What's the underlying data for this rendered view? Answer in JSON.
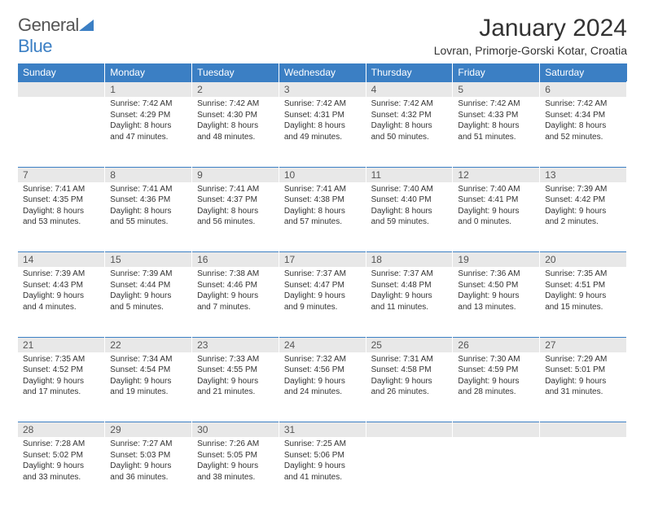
{
  "brand": {
    "name_part1": "General",
    "name_part2": "Blue"
  },
  "title": "January 2024",
  "location": "Lovran, Primorje-Gorski Kotar, Croatia",
  "colors": {
    "accent": "#3b7fc4",
    "daynum_bg": "#e8e8e8",
    "text": "#333333",
    "bg": "#ffffff"
  },
  "day_headers": [
    "Sunday",
    "Monday",
    "Tuesday",
    "Wednesday",
    "Thursday",
    "Friday",
    "Saturday"
  ],
  "weeks": [
    {
      "nums": [
        "",
        "1",
        "2",
        "3",
        "4",
        "5",
        "6"
      ],
      "cells": [
        {
          "empty": true
        },
        {
          "sunrise": "7:42 AM",
          "sunset": "4:29 PM",
          "daylight": "8 hours and 47 minutes."
        },
        {
          "sunrise": "7:42 AM",
          "sunset": "4:30 PM",
          "daylight": "8 hours and 48 minutes."
        },
        {
          "sunrise": "7:42 AM",
          "sunset": "4:31 PM",
          "daylight": "8 hours and 49 minutes."
        },
        {
          "sunrise": "7:42 AM",
          "sunset": "4:32 PM",
          "daylight": "8 hours and 50 minutes."
        },
        {
          "sunrise": "7:42 AM",
          "sunset": "4:33 PM",
          "daylight": "8 hours and 51 minutes."
        },
        {
          "sunrise": "7:42 AM",
          "sunset": "4:34 PM",
          "daylight": "8 hours and 52 minutes."
        }
      ]
    },
    {
      "nums": [
        "7",
        "8",
        "9",
        "10",
        "11",
        "12",
        "13"
      ],
      "cells": [
        {
          "sunrise": "7:41 AM",
          "sunset": "4:35 PM",
          "daylight": "8 hours and 53 minutes."
        },
        {
          "sunrise": "7:41 AM",
          "sunset": "4:36 PM",
          "daylight": "8 hours and 55 minutes."
        },
        {
          "sunrise": "7:41 AM",
          "sunset": "4:37 PM",
          "daylight": "8 hours and 56 minutes."
        },
        {
          "sunrise": "7:41 AM",
          "sunset": "4:38 PM",
          "daylight": "8 hours and 57 minutes."
        },
        {
          "sunrise": "7:40 AM",
          "sunset": "4:40 PM",
          "daylight": "8 hours and 59 minutes."
        },
        {
          "sunrise": "7:40 AM",
          "sunset": "4:41 PM",
          "daylight": "9 hours and 0 minutes."
        },
        {
          "sunrise": "7:39 AM",
          "sunset": "4:42 PM",
          "daylight": "9 hours and 2 minutes."
        }
      ]
    },
    {
      "nums": [
        "14",
        "15",
        "16",
        "17",
        "18",
        "19",
        "20"
      ],
      "cells": [
        {
          "sunrise": "7:39 AM",
          "sunset": "4:43 PM",
          "daylight": "9 hours and 4 minutes."
        },
        {
          "sunrise": "7:39 AM",
          "sunset": "4:44 PM",
          "daylight": "9 hours and 5 minutes."
        },
        {
          "sunrise": "7:38 AM",
          "sunset": "4:46 PM",
          "daylight": "9 hours and 7 minutes."
        },
        {
          "sunrise": "7:37 AM",
          "sunset": "4:47 PM",
          "daylight": "9 hours and 9 minutes."
        },
        {
          "sunrise": "7:37 AM",
          "sunset": "4:48 PM",
          "daylight": "9 hours and 11 minutes."
        },
        {
          "sunrise": "7:36 AM",
          "sunset": "4:50 PM",
          "daylight": "9 hours and 13 minutes."
        },
        {
          "sunrise": "7:35 AM",
          "sunset": "4:51 PM",
          "daylight": "9 hours and 15 minutes."
        }
      ]
    },
    {
      "nums": [
        "21",
        "22",
        "23",
        "24",
        "25",
        "26",
        "27"
      ],
      "cells": [
        {
          "sunrise": "7:35 AM",
          "sunset": "4:52 PM",
          "daylight": "9 hours and 17 minutes."
        },
        {
          "sunrise": "7:34 AM",
          "sunset": "4:54 PM",
          "daylight": "9 hours and 19 minutes."
        },
        {
          "sunrise": "7:33 AM",
          "sunset": "4:55 PM",
          "daylight": "9 hours and 21 minutes."
        },
        {
          "sunrise": "7:32 AM",
          "sunset": "4:56 PM",
          "daylight": "9 hours and 24 minutes."
        },
        {
          "sunrise": "7:31 AM",
          "sunset": "4:58 PM",
          "daylight": "9 hours and 26 minutes."
        },
        {
          "sunrise": "7:30 AM",
          "sunset": "4:59 PM",
          "daylight": "9 hours and 28 minutes."
        },
        {
          "sunrise": "7:29 AM",
          "sunset": "5:01 PM",
          "daylight": "9 hours and 31 minutes."
        }
      ]
    },
    {
      "nums": [
        "28",
        "29",
        "30",
        "31",
        "",
        "",
        ""
      ],
      "cells": [
        {
          "sunrise": "7:28 AM",
          "sunset": "5:02 PM",
          "daylight": "9 hours and 33 minutes."
        },
        {
          "sunrise": "7:27 AM",
          "sunset": "5:03 PM",
          "daylight": "9 hours and 36 minutes."
        },
        {
          "sunrise": "7:26 AM",
          "sunset": "5:05 PM",
          "daylight": "9 hours and 38 minutes."
        },
        {
          "sunrise": "7:25 AM",
          "sunset": "5:06 PM",
          "daylight": "9 hours and 41 minutes."
        },
        {
          "empty": true
        },
        {
          "empty": true
        },
        {
          "empty": true
        }
      ]
    }
  ],
  "labels": {
    "sunrise": "Sunrise:",
    "sunset": "Sunset:",
    "daylight": "Daylight:"
  }
}
